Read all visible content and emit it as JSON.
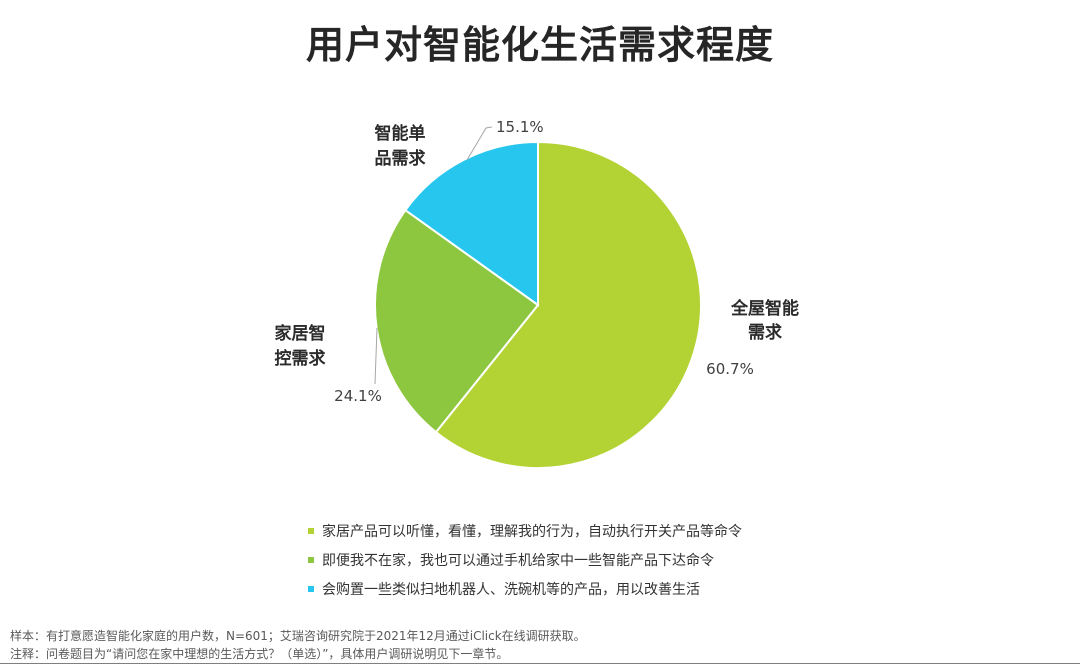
{
  "title": "用户对智能化生活需求程度",
  "colors": {
    "full_home": "#b3d334",
    "home_control": "#8dc63f",
    "single_product": "#26c6ef"
  },
  "chart_data": {
    "type": "pie",
    "title": "用户对智能化生活需求程度",
    "slices": [
      {
        "label_line1": "全屋智能",
        "label_line2": "需求",
        "value": 60.7,
        "value_text": "60.7%",
        "color": "#b3d334"
      },
      {
        "label_line1": "家居智",
        "label_line2": "控需求",
        "value": 24.1,
        "value_text": "24.1%",
        "color": "#8dc63f"
      },
      {
        "label_line1": "智能单",
        "label_line2": "品需求",
        "value": 15.1,
        "value_text": "15.1%",
        "color": "#26c6ef"
      }
    ]
  },
  "legend": [
    {
      "text": "家居产品可以听懂，看懂，理解我的行为，自动执行开关产品等命令",
      "color": "#b3d334"
    },
    {
      "text": "即便我不在家，我也可以通过手机给家中一些智能产品下达命令",
      "color": "#8dc63f"
    },
    {
      "text": "会购置一些类似扫地机器人、洗碗机等的产品，用以改善生活",
      "color": "#26c6ef"
    }
  ],
  "footnotes": {
    "sample": "样本：有打意愿造智能化家庭的用户数，N=601；艾瑞咨询研究院于2021年12月通过iClick在线调研获取。",
    "note": "注释：问卷题目为“请问您在家中理想的生活方式？（单选）”，具体用户调研说明见下一章节。"
  }
}
